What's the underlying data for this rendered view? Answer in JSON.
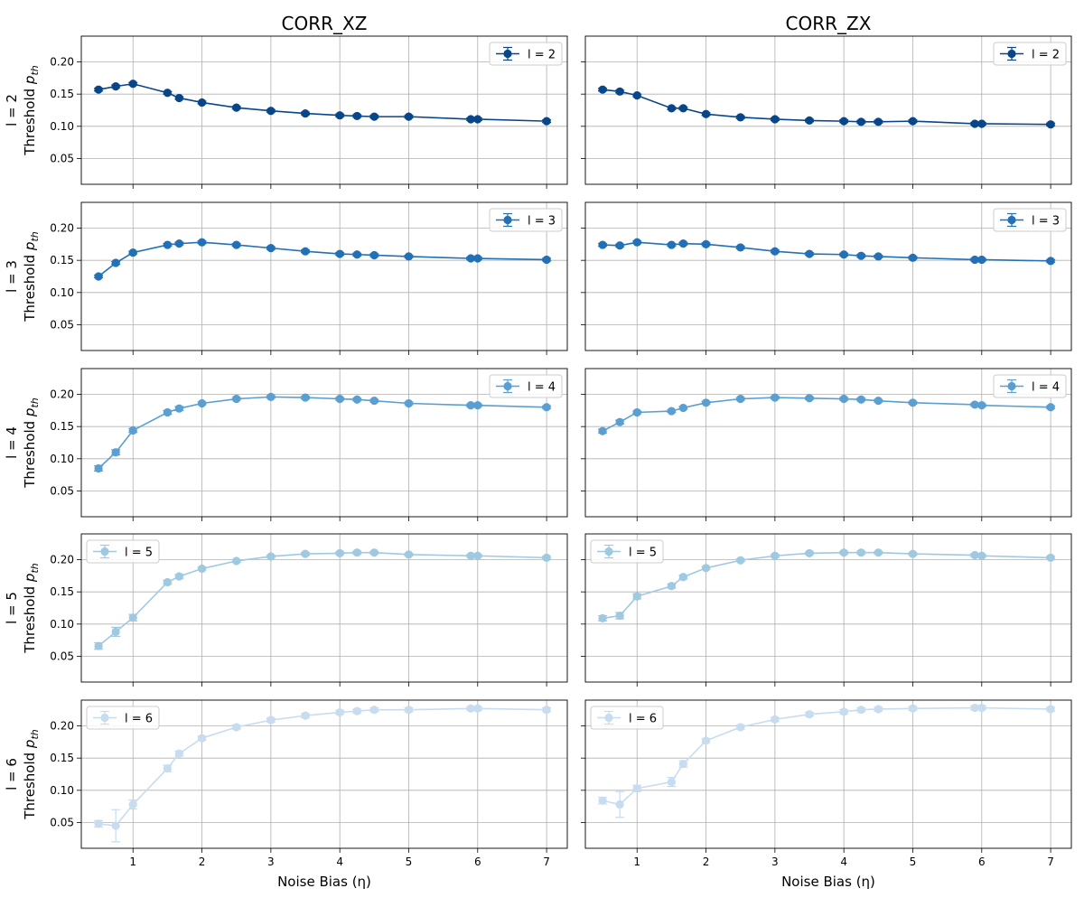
{
  "figure": {
    "columns": [
      "CORR_XZ",
      "CORR_ZX"
    ],
    "xlabel": "Noise Bias (η)",
    "ylabel_prefix": "Threshold ",
    "ylabel_symbol": "p",
    "ylabel_subscript": "th",
    "row_labels": [
      "l = 2",
      "l = 3",
      "l = 4",
      "l = 5",
      "l = 6"
    ]
  },
  "chart_data": {
    "type": "line",
    "x": [
      0.5,
      0.75,
      1.0,
      1.5,
      1.67,
      2.0,
      2.5,
      3.0,
      3.5,
      4.0,
      4.25,
      4.5,
      5.0,
      5.9,
      6.0,
      7.0
    ],
    "xlim": [
      0.25,
      7.3
    ],
    "ylim": [
      0.01,
      0.24
    ],
    "xticks": [
      1,
      2,
      3,
      4,
      5,
      6,
      7
    ],
    "yticks": [
      0.05,
      0.1,
      0.15,
      0.2
    ],
    "xtick_labels": [
      "1",
      "2",
      "3",
      "4",
      "5",
      "6",
      "7"
    ],
    "ytick_labels": [
      "0.05",
      "0.10",
      "0.15",
      "0.20"
    ],
    "grid": true,
    "legend_positions": [
      "upper-right",
      "upper-right",
      "upper-right",
      "upper-left",
      "upper-left"
    ],
    "colors": [
      "#08468a",
      "#2270b5",
      "#5a9fd1",
      "#9ec9e1",
      "#c7dcef"
    ],
    "panels": [
      [
        {
          "name": "l = 2",
          "y": [
            0.157,
            0.162,
            0.166,
            0.152,
            0.144,
            0.137,
            0.129,
            0.124,
            0.12,
            0.117,
            0.116,
            0.115,
            0.115,
            0.111,
            0.111,
            0.108
          ],
          "err": [
            0.002,
            0.002,
            0.002,
            0.002,
            0.002,
            0.002,
            0.002,
            0.002,
            0.002,
            0.002,
            0.002,
            0.002,
            0.002,
            0.002,
            0.002,
            0.002
          ]
        },
        {
          "name": "l = 2",
          "y": [
            0.157,
            0.154,
            0.148,
            0.128,
            0.128,
            0.119,
            0.114,
            0.111,
            0.109,
            0.108,
            0.107,
            0.107,
            0.108,
            0.104,
            0.104,
            0.103
          ],
          "err": [
            0.002,
            0.002,
            0.002,
            0.002,
            0.002,
            0.002,
            0.002,
            0.002,
            0.002,
            0.002,
            0.002,
            0.002,
            0.002,
            0.002,
            0.002,
            0.002
          ]
        }
      ],
      [
        {
          "name": "l = 3",
          "y": [
            0.125,
            0.146,
            0.162,
            0.174,
            0.176,
            0.178,
            0.174,
            0.169,
            0.164,
            0.16,
            0.159,
            0.158,
            0.156,
            0.153,
            0.153,
            0.151
          ],
          "err": [
            0.002,
            0.002,
            0.002,
            0.002,
            0.002,
            0.002,
            0.002,
            0.002,
            0.002,
            0.002,
            0.002,
            0.002,
            0.002,
            0.002,
            0.002,
            0.002
          ]
        },
        {
          "name": "l = 3",
          "y": [
            0.174,
            0.173,
            0.178,
            0.174,
            0.176,
            0.175,
            0.17,
            0.164,
            0.16,
            0.159,
            0.157,
            0.156,
            0.154,
            0.151,
            0.151,
            0.149
          ],
          "err": [
            0.002,
            0.002,
            0.002,
            0.002,
            0.002,
            0.002,
            0.002,
            0.002,
            0.002,
            0.002,
            0.002,
            0.002,
            0.002,
            0.002,
            0.002,
            0.002
          ]
        }
      ],
      [
        {
          "name": "l = 4",
          "y": [
            0.085,
            0.11,
            0.144,
            0.172,
            0.178,
            0.186,
            0.193,
            0.196,
            0.195,
            0.193,
            0.192,
            0.19,
            0.186,
            0.183,
            0.183,
            0.18
          ],
          "err": [
            0.004,
            0.004,
            0.003,
            0.003,
            0.003,
            0.002,
            0.002,
            0.002,
            0.002,
            0.002,
            0.002,
            0.002,
            0.002,
            0.002,
            0.002,
            0.002
          ]
        },
        {
          "name": "l = 4",
          "y": [
            0.143,
            0.157,
            0.172,
            0.174,
            0.179,
            0.187,
            0.193,
            0.195,
            0.194,
            0.193,
            0.192,
            0.19,
            0.187,
            0.184,
            0.183,
            0.18
          ],
          "err": [
            0.003,
            0.003,
            0.002,
            0.002,
            0.002,
            0.002,
            0.002,
            0.002,
            0.002,
            0.002,
            0.002,
            0.002,
            0.002,
            0.002,
            0.002,
            0.002
          ]
        }
      ],
      [
        {
          "name": "l = 5",
          "y": [
            0.066,
            0.088,
            0.11,
            0.165,
            0.174,
            0.186,
            0.198,
            0.205,
            0.209,
            0.21,
            0.211,
            0.211,
            0.208,
            0.206,
            0.206,
            0.203
          ],
          "err": [
            0.005,
            0.007,
            0.005,
            0.003,
            0.003,
            0.002,
            0.002,
            0.002,
            0.002,
            0.002,
            0.002,
            0.002,
            0.002,
            0.002,
            0.002,
            0.002
          ]
        },
        {
          "name": "l = 5",
          "y": [
            0.109,
            0.113,
            0.143,
            0.159,
            0.173,
            0.187,
            0.199,
            0.206,
            0.21,
            0.211,
            0.211,
            0.211,
            0.209,
            0.207,
            0.206,
            0.203
          ],
          "err": [
            0.004,
            0.005,
            0.004,
            0.003,
            0.003,
            0.002,
            0.002,
            0.002,
            0.002,
            0.002,
            0.002,
            0.002,
            0.002,
            0.002,
            0.002,
            0.002
          ]
        }
      ],
      [
        {
          "name": "l = 6",
          "y": [
            0.048,
            0.045,
            0.078,
            0.134,
            0.157,
            0.181,
            0.198,
            0.209,
            0.216,
            0.221,
            0.223,
            0.225,
            0.225,
            0.227,
            0.227,
            0.225
          ],
          "err": [
            0.005,
            0.025,
            0.007,
            0.005,
            0.004,
            0.003,
            0.003,
            0.003,
            0.003,
            0.003,
            0.003,
            0.003,
            0.003,
            0.003,
            0.003,
            0.003
          ]
        },
        {
          "name": "l = 6",
          "y": [
            0.084,
            0.078,
            0.103,
            0.113,
            0.141,
            0.177,
            0.198,
            0.21,
            0.218,
            0.222,
            0.225,
            0.226,
            0.227,
            0.228,
            0.228,
            0.226
          ],
          "err": [
            0.005,
            0.02,
            0.005,
            0.007,
            0.005,
            0.003,
            0.003,
            0.003,
            0.003,
            0.003,
            0.003,
            0.003,
            0.003,
            0.003,
            0.003,
            0.003
          ]
        }
      ]
    ]
  }
}
